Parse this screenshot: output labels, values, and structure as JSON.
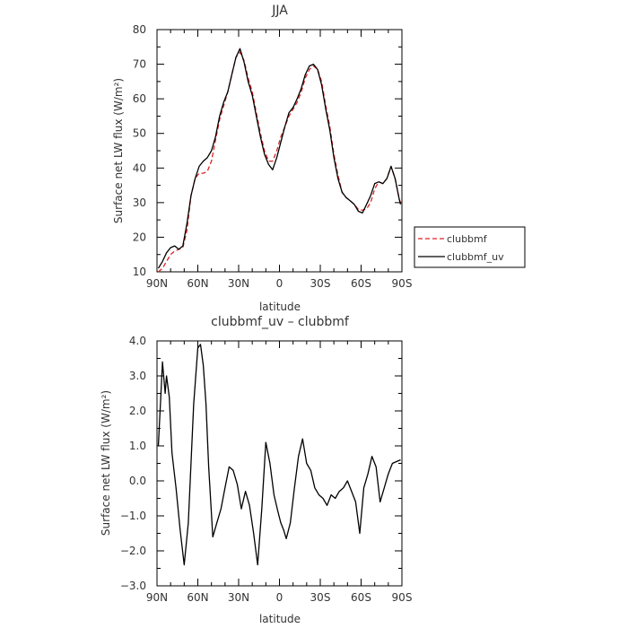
{
  "figure": {
    "background": "#ffffff"
  },
  "chart_data": [
    {
      "type": "line",
      "title": "JJA",
      "xlabel": "latitude",
      "ylabel": "Surface net LW flux (W/m²)",
      "xlim": [
        90,
        -90
      ],
      "ylim": [
        10,
        80
      ],
      "xticks": [
        90,
        60,
        30,
        0,
        -30,
        -60,
        -90
      ],
      "xticklabels": [
        "90N",
        "60N",
        "30N",
        "0",
        "30S",
        "60S",
        "90S"
      ],
      "yticks": [
        10,
        20,
        30,
        40,
        50,
        60,
        70,
        80
      ],
      "yticklabels": [
        "10",
        "20",
        "30",
        "40",
        "50",
        "60",
        "70",
        "80"
      ],
      "grid": false,
      "legend": {
        "placement": "right",
        "entries": [
          "clubbmf",
          "clubbmf_uv"
        ]
      },
      "series": [
        {
          "name": "clubbmf",
          "color": "#dd2222",
          "dash": "dashed",
          "x": [
            89,
            86,
            83,
            80,
            77,
            74,
            71,
            68,
            65,
            62,
            59,
            56,
            53,
            50,
            47,
            44,
            41,
            38,
            35,
            32,
            29,
            26,
            23,
            20,
            17,
            14,
            11,
            8,
            5,
            2,
            -1,
            -4,
            -7,
            -10,
            -13,
            -16,
            -19,
            -22,
            -25,
            -28,
            -31,
            -34,
            -37,
            -40,
            -43,
            -46,
            -49,
            -52,
            -55,
            -58,
            -61,
            -64,
            -67,
            -70,
            -73,
            -76,
            -79,
            -82,
            -85,
            -88,
            -89
          ],
          "y": [
            10,
            11,
            13,
            15,
            16,
            16.5,
            17,
            22,
            32,
            37,
            38.5,
            38.5,
            39,
            42,
            48,
            54,
            58,
            62,
            67,
            72,
            73.5,
            71,
            66,
            62,
            56,
            50,
            45,
            42,
            42,
            45,
            49,
            52,
            55,
            57,
            59,
            62,
            66,
            68.5,
            69.5,
            68.5,
            65,
            58,
            52,
            44,
            38,
            33,
            31.5,
            30.5,
            29.5,
            28,
            27.8,
            28.2,
            30,
            34,
            36,
            35.5,
            37,
            40.5,
            37,
            31,
            30
          ]
        },
        {
          "name": "clubbmf_uv",
          "color": "#000000",
          "dash": "solid",
          "x": [
            89,
            86,
            83,
            80,
            77,
            74,
            71,
            68,
            65,
            62,
            59,
            56,
            53,
            50,
            47,
            44,
            41,
            38,
            35,
            32,
            29,
            26,
            23,
            20,
            17,
            14,
            11,
            8,
            5,
            2,
            -1,
            -4,
            -7,
            -10,
            -13,
            -16,
            -19,
            -22,
            -25,
            -28,
            -31,
            -34,
            -37,
            -40,
            -43,
            -46,
            -49,
            -52,
            -55,
            -58,
            -61,
            -64,
            -67,
            -70,
            -73,
            -76,
            -79,
            -82,
            -85,
            -88,
            -89
          ],
          "y": [
            11,
            13,
            15.5,
            17,
            17.5,
            16.5,
            17.5,
            24,
            32,
            37,
            40.5,
            42,
            43,
            45,
            49,
            55,
            59,
            62,
            67,
            72,
            74.5,
            70.5,
            65,
            61,
            55,
            49,
            44,
            41,
            39.5,
            43,
            47.5,
            52,
            56,
            57.5,
            60,
            63,
            67,
            69.5,
            70,
            68.5,
            64,
            57,
            51,
            43,
            37,
            33,
            31.5,
            30.5,
            29.5,
            27.5,
            27,
            29.5,
            32,
            35.5,
            36,
            35.5,
            37,
            40.5,
            37,
            31,
            29.5
          ]
        }
      ]
    },
    {
      "type": "line",
      "title": "clubbmf_uv – clubbmf",
      "xlabel": "latitude",
      "ylabel": "Surface net LW flux (W/m²)",
      "xlim": [
        90,
        -90
      ],
      "ylim": [
        -3,
        4
      ],
      "xticks": [
        90,
        60,
        30,
        0,
        -30,
        -60,
        -90
      ],
      "xticklabels": [
        "90N",
        "60N",
        "30N",
        "0",
        "30S",
        "60S",
        "90S"
      ],
      "yticks": [
        -3,
        -2,
        -1,
        0,
        1,
        2,
        3,
        4
      ],
      "yticklabels": [
        "−3.0",
        "−2.0",
        "−1.0",
        "0.0",
        "1.0",
        "2.0",
        "3.0",
        "4.0"
      ],
      "grid": false,
      "series": [
        {
          "color": "#000000",
          "dash": "solid",
          "x": [
            89,
            87,
            86,
            84,
            83,
            81,
            79,
            76,
            73,
            70,
            67,
            65,
            63,
            60,
            58,
            56,
            54,
            52,
            49,
            46,
            43,
            40,
            37,
            34,
            31,
            28,
            25,
            22,
            19,
            16,
            13,
            10,
            7,
            4,
            1,
            -1,
            -3,
            -5,
            -8,
            -11,
            -14,
            -17,
            -20,
            -23,
            -26,
            -29,
            -32,
            -35,
            -38,
            -41,
            -44,
            -47,
            -50,
            -53,
            -56,
            -59,
            -62,
            -65,
            -68,
            -71,
            -74,
            -77,
            -80,
            -83,
            -86,
            -89
          ],
          "y": [
            1.0,
            2.6,
            3.4,
            2.5,
            3.0,
            2.4,
            0.8,
            -0.2,
            -1.4,
            -2.4,
            -1.2,
            0.5,
            2.2,
            3.8,
            3.9,
            3.3,
            2.2,
            0.4,
            -1.6,
            -1.2,
            -0.8,
            -0.2,
            0.4,
            0.3,
            -0.1,
            -0.8,
            -0.3,
            -0.7,
            -1.5,
            -2.4,
            -0.8,
            1.1,
            0.5,
            -0.4,
            -0.9,
            -1.2,
            -1.4,
            -1.65,
            -1.2,
            -0.2,
            0.7,
            1.2,
            0.5,
            0.3,
            -0.2,
            -0.4,
            -0.5,
            -0.7,
            -0.4,
            -0.5,
            -0.3,
            -0.2,
            0.0,
            -0.3,
            -0.6,
            -1.5,
            -0.2,
            0.2,
            0.7,
            0.4,
            -0.6,
            -0.2,
            0.2,
            0.5,
            0.55,
            0.6
          ]
        }
      ]
    }
  ]
}
